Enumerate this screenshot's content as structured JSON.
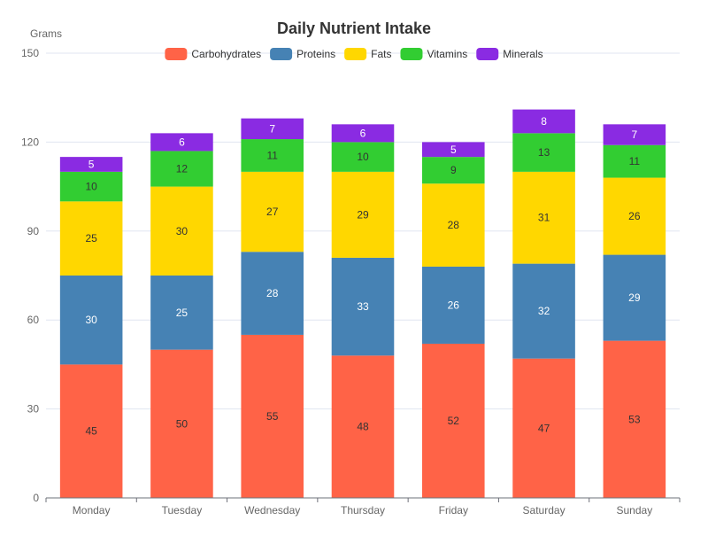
{
  "chart_data": {
    "type": "bar",
    "stacked": true,
    "title": "Daily Nutrient Intake",
    "xlabel": "",
    "ylabel": "Grams",
    "ylim": [
      0,
      150
    ],
    "yticks": [
      0,
      30,
      60,
      90,
      120,
      150
    ],
    "categories": [
      "Monday",
      "Tuesday",
      "Wednesday",
      "Thursday",
      "Friday",
      "Saturday",
      "Sunday"
    ],
    "legend_position": "top-center",
    "grid": true,
    "series": [
      {
        "name": "Carbohydrates",
        "color": "#FF6347",
        "label_color": "#333333",
        "values": [
          45,
          50,
          55,
          48,
          52,
          47,
          53
        ]
      },
      {
        "name": "Proteins",
        "color": "#4682B4",
        "label_color": "#ffffff",
        "values": [
          30,
          25,
          28,
          33,
          26,
          32,
          29
        ]
      },
      {
        "name": "Fats",
        "color": "#FFD700",
        "label_color": "#333333",
        "values": [
          25,
          30,
          27,
          29,
          28,
          31,
          26
        ]
      },
      {
        "name": "Vitamins",
        "color": "#32CD32",
        "label_color": "#333333",
        "values": [
          10,
          12,
          11,
          10,
          9,
          13,
          11
        ]
      },
      {
        "name": "Minerals",
        "color": "#8A2BE2",
        "label_color": "#ffffff",
        "values": [
          5,
          6,
          7,
          6,
          5,
          8,
          7
        ]
      }
    ]
  }
}
